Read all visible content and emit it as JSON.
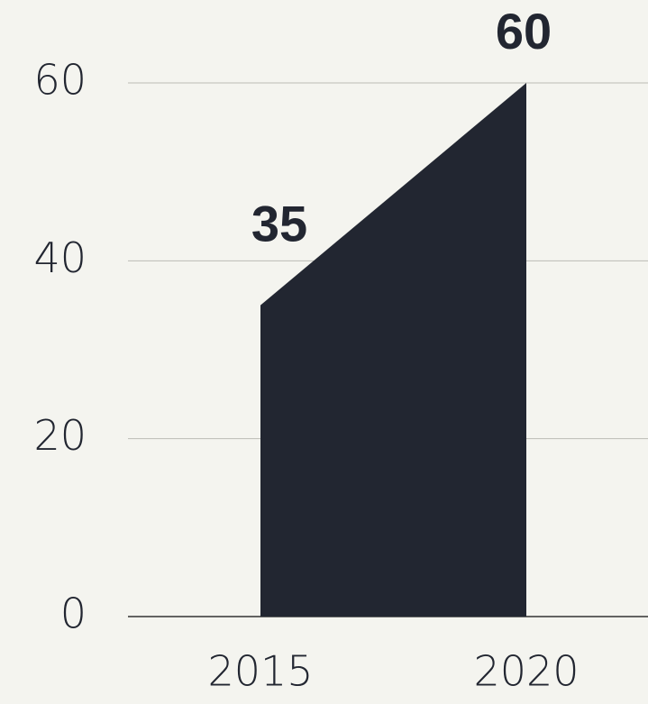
{
  "chart_data": {
    "type": "area",
    "categories": [
      "2015",
      "2020"
    ],
    "values": [
      35,
      60
    ],
    "color": "#222631",
    "ylim": [
      0,
      60
    ],
    "yticks": [
      0,
      20,
      40,
      60
    ],
    "grid": true,
    "data_labels": true
  }
}
